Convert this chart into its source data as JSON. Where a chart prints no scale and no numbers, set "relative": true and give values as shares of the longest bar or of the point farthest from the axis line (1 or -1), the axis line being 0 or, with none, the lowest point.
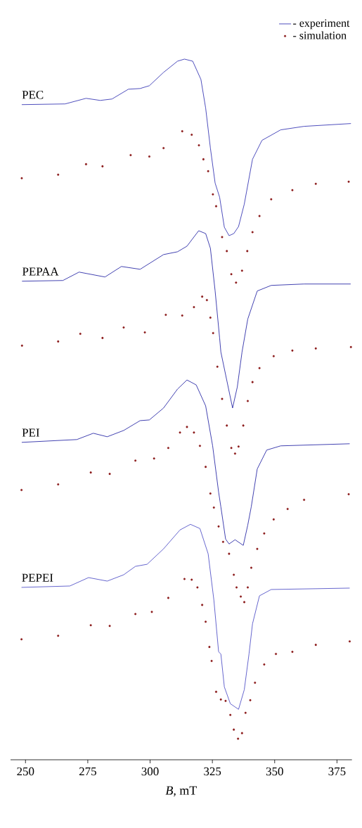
{
  "chart_data": {
    "type": "line",
    "relative": true,
    "xlabel": "*B*, mT",
    "xlim": [
      244,
      381
    ],
    "xticks": [
      250,
      275,
      300,
      325,
      350,
      375
    ],
    "legend": "top right",
    "annotations": [
      {
        "text": "PEC",
        "x": 248.5,
        "y": 0.935
      },
      {
        "text": "PEPAA",
        "x": 248.6,
        "y": 0.683
      },
      {
        "text": "PEI",
        "x": 248.5,
        "y": 0.453
      },
      {
        "text": "PEPEI",
        "x": 248.4,
        "y": 0.246
      }
    ],
    "series": [
      {
        "name": "- experiment",
        "marker": "none",
        "color": "#3b3bb5",
        "x": [
          248.5,
          265.9,
          274.3,
          280.0,
          284.7,
          291.3,
          296.0,
          299.7,
          305.4,
          311.0,
          313.8,
          317.1,
          320.4,
          322.3,
          324.2,
          326.1,
          327.9,
          329.8,
          331.7,
          333.6,
          335.5,
          337.8,
          341.1,
          344.9,
          352.4,
          361.8,
          380.6
        ],
        "values": [
          0.935,
          0.936,
          0.944,
          0.941,
          0.943,
          0.957,
          0.958,
          0.962,
          0.981,
          0.997,
          1.0,
          0.997,
          0.971,
          0.93,
          0.873,
          0.823,
          0.803,
          0.76,
          0.748,
          0.751,
          0.761,
          0.793,
          0.857,
          0.884,
          0.899,
          0.904,
          0.908
        ]
      },
      {
        "name": "- simulation",
        "type": "scatter",
        "marker": "circle",
        "color": "#8b1a1a",
        "x": [
          248.5,
          263.1,
          274.3,
          280.9,
          292.2,
          299.7,
          305.4,
          312.9,
          316.7,
          319.6,
          321.4,
          323.3,
          325.2,
          326.5,
          328.9,
          330.8,
          332.6,
          334.5,
          336.9,
          339.0,
          341.1,
          343.9,
          348.6,
          357.1,
          366.5,
          379.7
        ],
        "values": [
          0.83,
          0.835,
          0.85,
          0.847,
          0.863,
          0.861,
          0.873,
          0.897,
          0.892,
          0.877,
          0.857,
          0.84,
          0.807,
          0.79,
          0.746,
          0.726,
          0.693,
          0.681,
          0.698,
          0.726,
          0.753,
          0.776,
          0.8,
          0.813,
          0.822,
          0.825
        ]
      },
      {
        "marker": "none",
        "color": "#2e2ea8",
        "x": [
          248.6,
          265.0,
          271.5,
          281.9,
          288.5,
          296.0,
          305.4,
          311.0,
          314.8,
          319.5,
          322.3,
          324.2,
          326.1,
          327.9,
          328.4,
          333.1,
          335.0,
          336.9,
          339.2,
          343.0,
          348.6,
          361.8,
          380.5
        ],
        "values": [
          0.683,
          0.684,
          0.696,
          0.689,
          0.704,
          0.7,
          0.721,
          0.725,
          0.733,
          0.755,
          0.751,
          0.73,
          0.669,
          0.602,
          0.582,
          0.502,
          0.532,
          0.582,
          0.629,
          0.669,
          0.677,
          0.679,
          0.679
        ]
      },
      {
        "type": "scatter",
        "marker": "circle",
        "color": "#8b1a1a",
        "x": [
          248.6,
          263.1,
          272.0,
          280.9,
          289.4,
          297.9,
          306.3,
          312.9,
          317.6,
          320.9,
          322.8,
          324.2,
          325.3,
          327.0,
          328.9,
          330.8,
          332.6,
          334.1,
          335.5,
          337.4,
          339.2,
          341.1,
          343.9,
          349.6,
          357.1,
          366.5,
          380.6
        ],
        "values": [
          0.591,
          0.597,
          0.608,
          0.602,
          0.617,
          0.61,
          0.635,
          0.634,
          0.646,
          0.661,
          0.656,
          0.631,
          0.609,
          0.561,
          0.515,
          0.477,
          0.445,
          0.437,
          0.447,
          0.477,
          0.512,
          0.539,
          0.559,
          0.576,
          0.584,
          0.587,
          0.589
        ]
      },
      {
        "marker": "none",
        "color": "#2e2ea8",
        "x": [
          248.5,
          270.6,
          277.2,
          282.8,
          289.4,
          296.0,
          299.7,
          305.4,
          311.0,
          314.8,
          318.5,
          322.3,
          325.1,
          327.5,
          328.4,
          330.3,
          331.7,
          334.1,
          337.4,
          339.2,
          340.6,
          343.0,
          346.8,
          352.4,
          380.1
        ],
        "values": [
          0.453,
          0.457,
          0.466,
          0.461,
          0.47,
          0.484,
          0.485,
          0.502,
          0.529,
          0.542,
          0.535,
          0.505,
          0.448,
          0.382,
          0.361,
          0.315,
          0.308,
          0.314,
          0.306,
          0.335,
          0.361,
          0.415,
          0.442,
          0.448,
          0.451
        ]
      },
      {
        "type": "scatter",
        "marker": "circle",
        "color": "#8b1a1a",
        "x": [
          248.4,
          263.1,
          276.2,
          283.8,
          294.1,
          301.6,
          307.3,
          312.0,
          314.8,
          317.6,
          320.0,
          322.3,
          324.2,
          325.6,
          327.5,
          329.3,
          331.7,
          333.6,
          334.7,
          336.4,
          337.8,
          339.2,
          340.6,
          343.0,
          345.8,
          349.6,
          355.2,
          361.8,
          379.7
        ],
        "values": [
          0.385,
          0.393,
          0.41,
          0.408,
          0.427,
          0.43,
          0.445,
          0.467,
          0.475,
          0.467,
          0.448,
          0.418,
          0.38,
          0.36,
          0.333,
          0.311,
          0.294,
          0.264,
          0.246,
          0.233,
          0.225,
          0.246,
          0.274,
          0.301,
          0.323,
          0.343,
          0.358,
          0.371,
          0.379
        ]
      },
      {
        "marker": "none",
        "color": "#5656c8",
        "x": [
          248.4,
          267.8,
          275.3,
          282.8,
          289.4,
          294.1,
          298.8,
          305.4,
          312.0,
          316.2,
          320.0,
          323.3,
          325.6,
          327.5,
          328.4,
          329.8,
          332.2,
          335.5,
          337.8,
          339.7,
          341.1,
          343.9,
          348.6,
          380.1
        ],
        "values": [
          0.246,
          0.248,
          0.26,
          0.255,
          0.264,
          0.276,
          0.279,
          0.301,
          0.328,
          0.336,
          0.33,
          0.294,
          0.228,
          0.154,
          0.151,
          0.104,
          0.08,
          0.072,
          0.1,
          0.151,
          0.194,
          0.234,
          0.243,
          0.245
        ]
      },
      {
        "type": "scatter",
        "marker": "circle",
        "color": "#8b1a1a",
        "x": [
          248.4,
          263.1,
          276.2,
          283.8,
          294.1,
          300.7,
          307.3,
          313.8,
          316.7,
          319.0,
          320.9,
          322.3,
          323.8,
          324.7,
          326.5,
          328.4,
          330.3,
          332.2,
          333.6,
          335.3,
          336.9,
          338.3,
          340.2,
          342.1,
          345.8,
          350.5,
          357.1,
          366.5,
          380.1
        ],
        "values": [
          0.172,
          0.177,
          0.192,
          0.191,
          0.208,
          0.211,
          0.231,
          0.258,
          0.257,
          0.246,
          0.221,
          0.197,
          0.161,
          0.141,
          0.097,
          0.086,
          0.084,
          0.064,
          0.043,
          0.03,
          0.038,
          0.067,
          0.085,
          0.11,
          0.136,
          0.151,
          0.154,
          0.164,
          0.169
        ]
      }
    ]
  }
}
